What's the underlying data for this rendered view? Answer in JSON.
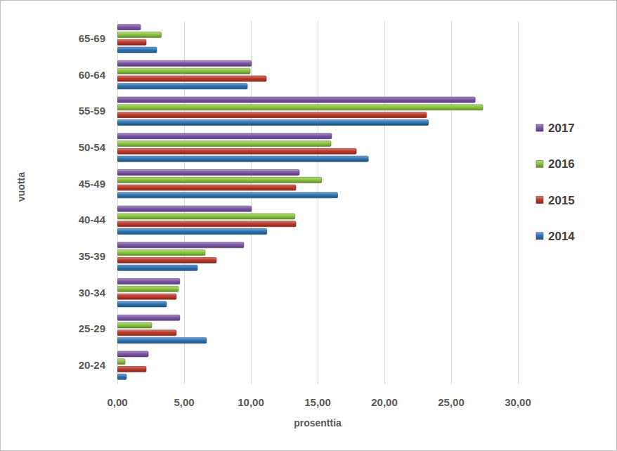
{
  "chart_data": {
    "type": "bar",
    "orientation": "horizontal",
    "xlabel": "prosenttia",
    "ylabel": "vuotta",
    "categories": [
      "20-24",
      "25-29",
      "30-34",
      "35-39",
      "40-44",
      "45-49",
      "50-54",
      "55-59",
      "60-64",
      "65-69"
    ],
    "series": [
      {
        "name": "2014",
        "color": "#2e75b6",
        "values": [
          0.68,
          6.68,
          3.68,
          6.0,
          11.2,
          16.5,
          18.8,
          23.3,
          9.74,
          2.95
        ]
      },
      {
        "name": "2015",
        "color": "#c0392b",
        "values": [
          2.16,
          4.42,
          4.42,
          7.42,
          13.37,
          13.37,
          17.9,
          23.16,
          11.16,
          2.16
        ]
      },
      {
        "name": "2016",
        "color": "#8dc63f",
        "values": [
          0.58,
          2.58,
          4.58,
          6.58,
          13.3,
          15.3,
          16.0,
          27.37,
          9.95,
          3.3
        ]
      },
      {
        "name": "2017",
        "color": "#7e57a8",
        "values": [
          2.32,
          4.68,
          4.68,
          9.47,
          10.05,
          13.63,
          16.05,
          26.8,
          10.05,
          1.74
        ]
      }
    ],
    "xlim": [
      0,
      30
    ],
    "xticks": [
      {
        "value": 0,
        "label": "0,00"
      },
      {
        "value": 5,
        "label": "5,00"
      },
      {
        "value": 10,
        "label": "10,00"
      },
      {
        "value": 15,
        "label": "15,00"
      },
      {
        "value": 20,
        "label": "20,00"
      },
      {
        "value": 25,
        "label": "25,00"
      },
      {
        "value": 30,
        "label": "30,00"
      }
    ],
    "grid": true,
    "legend": "right"
  }
}
